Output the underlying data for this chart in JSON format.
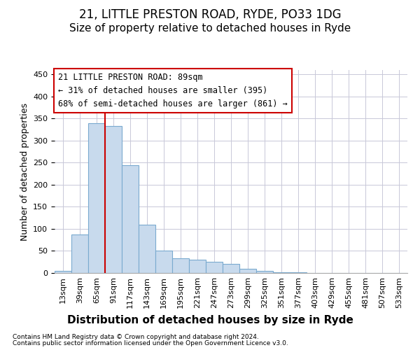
{
  "title1": "21, LITTLE PRESTON ROAD, RYDE, PO33 1DG",
  "title2": "Size of property relative to detached houses in Ryde",
  "xlabel": "Distribution of detached houses by size in Ryde",
  "ylabel": "Number of detached properties",
  "footnote1": "Contains HM Land Registry data © Crown copyright and database right 2024.",
  "footnote2": "Contains public sector information licensed under the Open Government Licence v3.0.",
  "annotation_line1": "21 LITTLE PRESTON ROAD: 89sqm",
  "annotation_line2": "← 31% of detached houses are smaller (395)",
  "annotation_line3": "68% of semi-detached houses are larger (861) →",
  "bar_values": [
    5,
    88,
    340,
    333,
    245,
    110,
    50,
    33,
    30,
    25,
    21,
    10,
    5,
    2,
    1,
    0,
    0,
    0,
    0,
    0,
    0
  ],
  "categories": [
    "13sqm",
    "39sqm",
    "65sqm",
    "91sqm",
    "117sqm",
    "143sqm",
    "169sqm",
    "195sqm",
    "221sqm",
    "247sqm",
    "273sqm",
    "299sqm",
    "325sqm",
    "351sqm",
    "377sqm",
    "403sqm",
    "429sqm",
    "455sqm",
    "481sqm",
    "507sqm",
    "533sqm"
  ],
  "bar_color": "#c8daed",
  "bar_edge_color": "#7aaacf",
  "bar_linewidth": 0.8,
  "vline_color": "#cc0000",
  "vline_x": 3,
  "ann_edgecolor": "#cc0000",
  "ann_facecolor": "white",
  "ann_fontsize": 8.5,
  "plot_bg": "white",
  "fig_bg": "white",
  "ylim_max": 460,
  "yticks": [
    0,
    50,
    100,
    150,
    200,
    250,
    300,
    350,
    400,
    450
  ],
  "grid_color": "#c8c8d8",
  "grid_lw": 0.7,
  "title1_fontsize": 12,
  "title2_fontsize": 11,
  "xlabel_fontsize": 11,
  "ylabel_fontsize": 9,
  "tick_fontsize": 8
}
